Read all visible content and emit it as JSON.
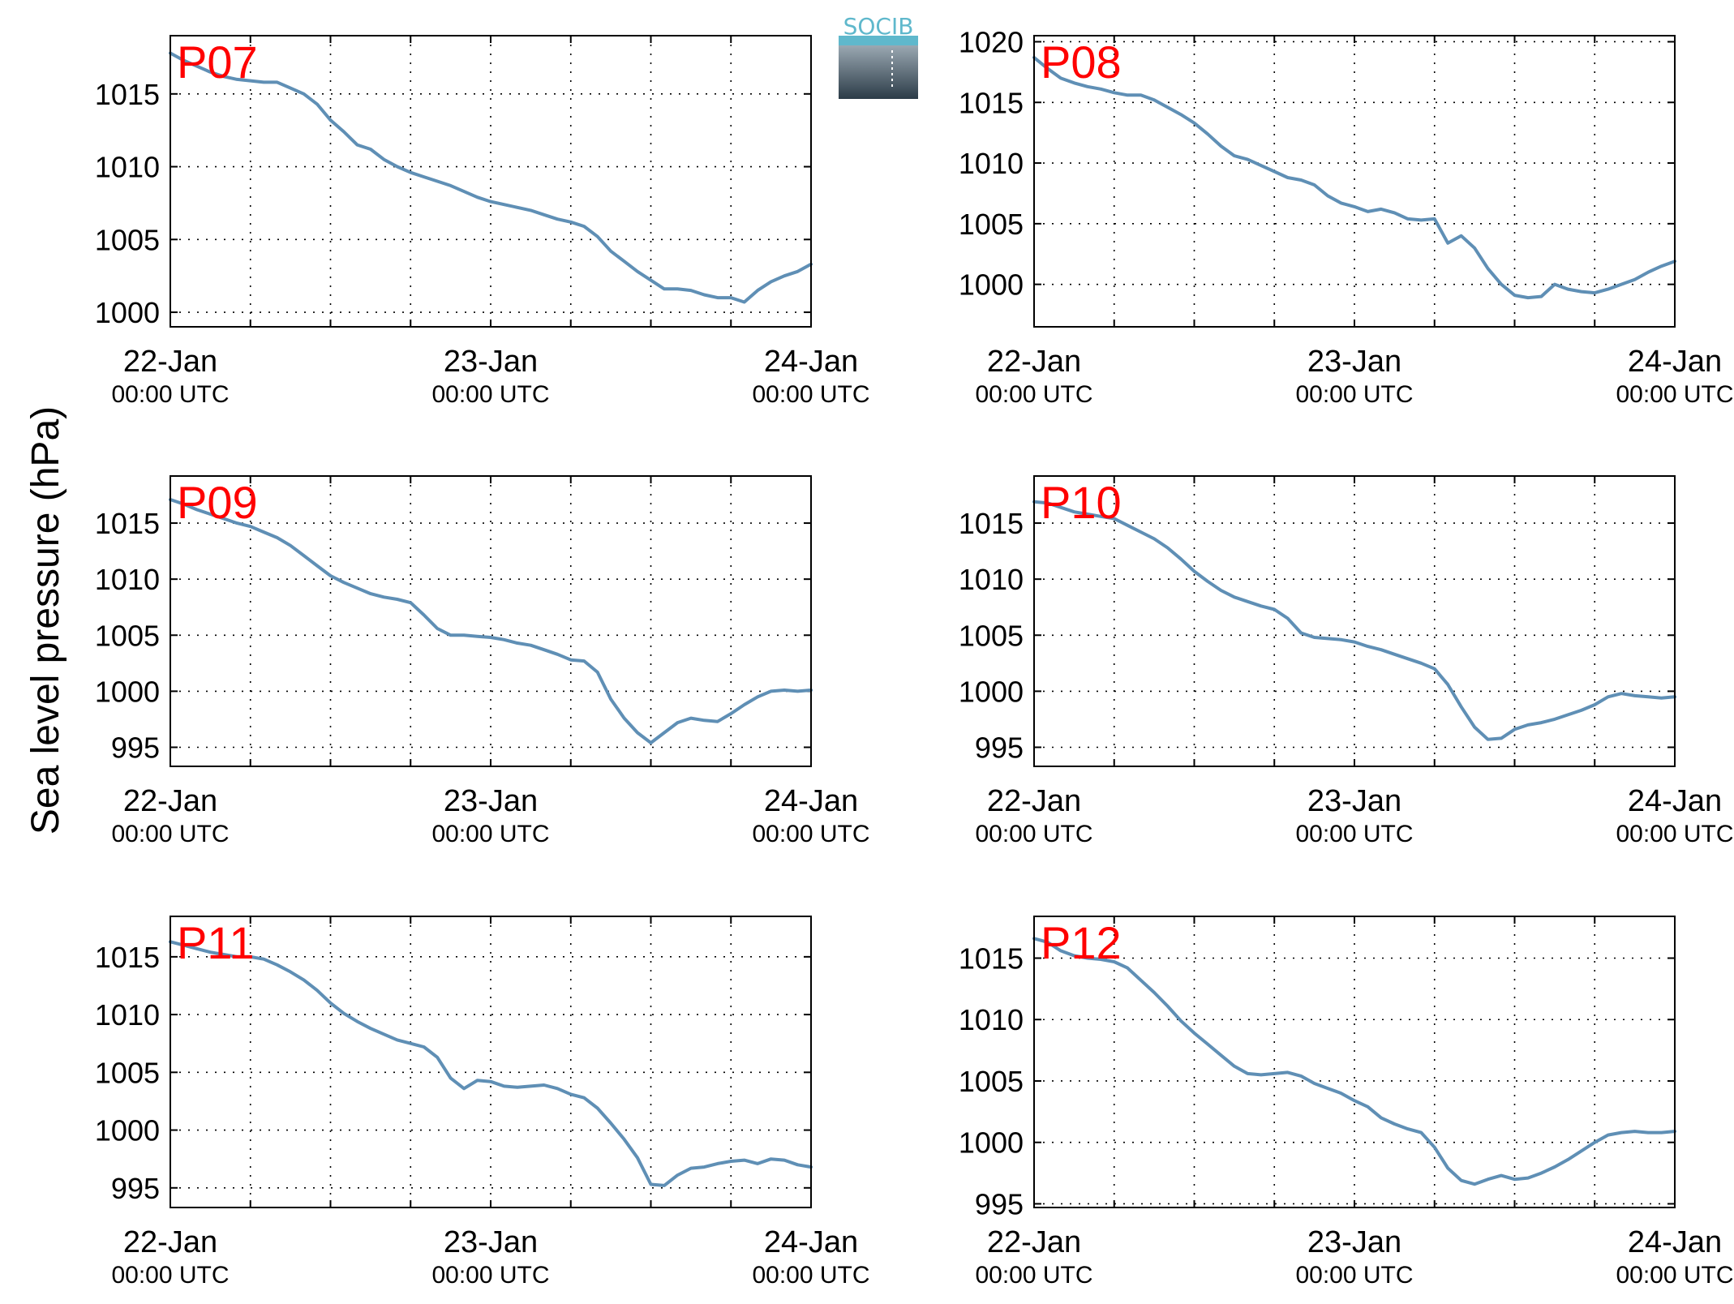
{
  "figure": {
    "ylabel": "Sea level pressure (hPa)",
    "logo_text": "SOCIB",
    "x_ticks": [
      {
        "date": "22-Jan",
        "time": "00:00 UTC",
        "hours": 0
      },
      {
        "date": "23-Jan",
        "time": "00:00 UTC",
        "hours": 24
      },
      {
        "date": "24-Jan",
        "time": "00:00 UTC",
        "hours": 48
      }
    ],
    "line_color": "#5f8fb5",
    "label_color": "#ff0000"
  },
  "chart_data": [
    {
      "type": "line",
      "panel_label": "P07",
      "x_unit": "hours since 22-Jan 00:00 UTC",
      "xlim": [
        0,
        48
      ],
      "ylim": [
        999,
        1019
      ],
      "yticks": [
        1000,
        1005,
        1010,
        1015
      ],
      "grid": true,
      "x": [
        0,
        1,
        2,
        3,
        4,
        5,
        6,
        7,
        8,
        9,
        10,
        11,
        12,
        13,
        14,
        15,
        16,
        17,
        18,
        19,
        20,
        21,
        22,
        23,
        24,
        25,
        26,
        27,
        28,
        29,
        30,
        31,
        32,
        33,
        34,
        35,
        36,
        37,
        38,
        39,
        40,
        41,
        42,
        43,
        44,
        45,
        46,
        47,
        48
      ],
      "y": [
        1017.8,
        1017.3,
        1016.9,
        1016.5,
        1016.2,
        1016.0,
        1015.9,
        1015.8,
        1015.8,
        1015.4,
        1015.0,
        1014.3,
        1013.2,
        1012.4,
        1011.5,
        1011.2,
        1010.5,
        1010.0,
        1009.6,
        1009.3,
        1009.0,
        1008.7,
        1008.3,
        1007.9,
        1007.6,
        1007.4,
        1007.2,
        1007.0,
        1006.7,
        1006.4,
        1006.2,
        1005.9,
        1005.2,
        1004.2,
        1003.5,
        1002.8,
        1002.2,
        1001.6,
        1001.6,
        1001.5,
        1001.2,
        1001.0,
        1001.0,
        1000.7,
        1001.5,
        1002.1,
        1002.5,
        1002.8,
        1003.3
      ]
    },
    {
      "type": "line",
      "panel_label": "P08",
      "x_unit": "hours since 22-Jan 00:00 UTC",
      "xlim": [
        0,
        48
      ],
      "ylim": [
        996.5,
        1020.5
      ],
      "yticks": [
        1000,
        1005,
        1010,
        1015,
        1020
      ],
      "grid": true,
      "x": [
        0,
        1,
        2,
        3,
        4,
        5,
        6,
        7,
        8,
        9,
        10,
        11,
        12,
        13,
        14,
        15,
        16,
        17,
        18,
        19,
        20,
        21,
        22,
        23,
        24,
        25,
        26,
        27,
        28,
        29,
        30,
        31,
        32,
        33,
        34,
        35,
        36,
        37,
        38,
        39,
        40,
        41,
        42,
        43,
        44,
        45,
        46,
        47,
        48
      ],
      "y": [
        1018.7,
        1017.8,
        1017.0,
        1016.6,
        1016.3,
        1016.1,
        1015.8,
        1015.6,
        1015.6,
        1015.2,
        1014.6,
        1014.0,
        1013.3,
        1012.4,
        1011.4,
        1010.6,
        1010.3,
        1009.8,
        1009.3,
        1008.8,
        1008.6,
        1008.2,
        1007.3,
        1006.7,
        1006.4,
        1006.0,
        1006.2,
        1005.9,
        1005.4,
        1005.3,
        1005.4,
        1003.4,
        1004.0,
        1003.0,
        1001.3,
        1000.0,
        999.1,
        998.9,
        999.0,
        1000.0,
        999.6,
        999.4,
        999.3,
        999.6,
        1000.0,
        1000.4,
        1001.0,
        1001.5,
        1001.9
      ]
    },
    {
      "type": "line",
      "panel_label": "P09",
      "x_unit": "hours since 22-Jan 00:00 UTC",
      "xlim": [
        0,
        48
      ],
      "ylim": [
        993.3,
        1019.2
      ],
      "yticks": [
        995,
        1000,
        1005,
        1010,
        1015
      ],
      "grid": true,
      "x": [
        0,
        1,
        2,
        3,
        4,
        5,
        6,
        7,
        8,
        9,
        10,
        11,
        12,
        13,
        14,
        15,
        16,
        17,
        18,
        19,
        20,
        21,
        22,
        23,
        24,
        25,
        26,
        27,
        28,
        29,
        30,
        31,
        32,
        33,
        34,
        35,
        36,
        37,
        38,
        39,
        40,
        41,
        42,
        43,
        44,
        45,
        46,
        47,
        48
      ],
      "y": [
        1017.1,
        1016.7,
        1016.2,
        1015.8,
        1015.4,
        1015.0,
        1014.7,
        1014.2,
        1013.7,
        1013.0,
        1012.1,
        1011.2,
        1010.3,
        1009.7,
        1009.2,
        1008.7,
        1008.4,
        1008.2,
        1007.9,
        1006.8,
        1005.6,
        1005.0,
        1005.0,
        1004.9,
        1004.8,
        1004.6,
        1004.3,
        1004.1,
        1003.7,
        1003.3,
        1002.8,
        1002.7,
        1001.7,
        999.3,
        997.6,
        996.3,
        995.4,
        996.3,
        997.2,
        997.6,
        997.4,
        997.3,
        998.0,
        998.8,
        999.5,
        1000.0,
        1000.1,
        1000.0,
        1000.1
      ]
    },
    {
      "type": "line",
      "panel_label": "P10",
      "x_unit": "hours since 22-Jan 00:00 UTC",
      "xlim": [
        0,
        48
      ],
      "ylim": [
        993.3,
        1019.2
      ],
      "yticks": [
        995,
        1000,
        1005,
        1010,
        1015
      ],
      "grid": true,
      "x": [
        0,
        1,
        2,
        3,
        4,
        5,
        6,
        7,
        8,
        9,
        10,
        11,
        12,
        13,
        14,
        15,
        16,
        17,
        18,
        19,
        20,
        21,
        22,
        23,
        24,
        25,
        26,
        27,
        28,
        29,
        30,
        31,
        32,
        33,
        34,
        35,
        36,
        37,
        38,
        39,
        40,
        41,
        42,
        43,
        44,
        45,
        46,
        47,
        48
      ],
      "y": [
        1016.9,
        1016.8,
        1016.4,
        1016.0,
        1015.8,
        1015.6,
        1015.4,
        1014.8,
        1014.2,
        1013.6,
        1012.8,
        1011.8,
        1010.7,
        1009.8,
        1009.0,
        1008.4,
        1008.0,
        1007.6,
        1007.3,
        1006.5,
        1005.2,
        1004.8,
        1004.7,
        1004.6,
        1004.4,
        1004.0,
        1003.7,
        1003.3,
        1002.9,
        1002.5,
        1002.0,
        1000.6,
        998.6,
        996.8,
        995.7,
        995.8,
        996.6,
        997.0,
        997.2,
        997.5,
        997.9,
        998.3,
        998.8,
        999.5,
        999.8,
        999.6,
        999.5,
        999.4,
        999.5
      ]
    },
    {
      "type": "line",
      "panel_label": "P11",
      "x_unit": "hours since 22-Jan 00:00 UTC",
      "xlim": [
        0,
        48
      ],
      "ylim": [
        993.3,
        1018.5
      ],
      "yticks": [
        995,
        1000,
        1005,
        1010,
        1015
      ],
      "grid": true,
      "x": [
        0,
        1,
        2,
        3,
        4,
        5,
        6,
        7,
        8,
        9,
        10,
        11,
        12,
        13,
        14,
        15,
        16,
        17,
        18,
        19,
        20,
        21,
        22,
        23,
        24,
        25,
        26,
        27,
        28,
        29,
        30,
        31,
        32,
        33,
        34,
        35,
        36,
        37,
        38,
        39,
        40,
        41,
        42,
        43,
        44,
        45,
        46,
        47,
        48
      ],
      "y": [
        1016.3,
        1016.0,
        1015.7,
        1015.4,
        1015.2,
        1015.0,
        1015.0,
        1014.8,
        1014.3,
        1013.7,
        1013.0,
        1012.1,
        1011.0,
        1010.1,
        1009.4,
        1008.8,
        1008.3,
        1007.8,
        1007.5,
        1007.2,
        1006.3,
        1004.5,
        1003.6,
        1004.3,
        1004.2,
        1003.8,
        1003.7,
        1003.8,
        1003.9,
        1003.6,
        1003.1,
        1002.8,
        1001.9,
        1000.6,
        999.2,
        997.6,
        995.3,
        995.2,
        996.1,
        996.7,
        996.8,
        997.1,
        997.3,
        997.4,
        997.1,
        997.5,
        997.4,
        997.0,
        996.8
      ]
    },
    {
      "type": "line",
      "panel_label": "P12",
      "x_unit": "hours since 22-Jan 00:00 UTC",
      "xlim": [
        0,
        48
      ],
      "ylim": [
        994.7,
        1018.4
      ],
      "yticks": [
        995,
        1000,
        1005,
        1010,
        1015
      ],
      "grid": true,
      "x": [
        0,
        1,
        2,
        3,
        4,
        5,
        6,
        7,
        8,
        9,
        10,
        11,
        12,
        13,
        14,
        15,
        16,
        17,
        18,
        19,
        20,
        21,
        22,
        23,
        24,
        25,
        26,
        27,
        28,
        29,
        30,
        31,
        32,
        33,
        34,
        35,
        36,
        37,
        38,
        39,
        40,
        41,
        42,
        43,
        44,
        45,
        46,
        47,
        48
      ],
      "y": [
        1016.6,
        1016.3,
        1015.6,
        1015.2,
        1015.0,
        1014.9,
        1014.7,
        1014.2,
        1013.2,
        1012.2,
        1011.1,
        1009.9,
        1008.9,
        1008.0,
        1007.1,
        1006.2,
        1005.6,
        1005.5,
        1005.6,
        1005.7,
        1005.4,
        1004.8,
        1004.4,
        1004.0,
        1003.4,
        1002.9,
        1002.0,
        1001.5,
        1001.1,
        1000.8,
        999.6,
        997.9,
        996.9,
        996.6,
        997.0,
        997.3,
        997.0,
        997.1,
        997.5,
        998.0,
        998.6,
        999.3,
        1000.0,
        1000.6,
        1000.8,
        1000.9,
        1000.8,
        1000.8,
        1000.9
      ]
    }
  ]
}
